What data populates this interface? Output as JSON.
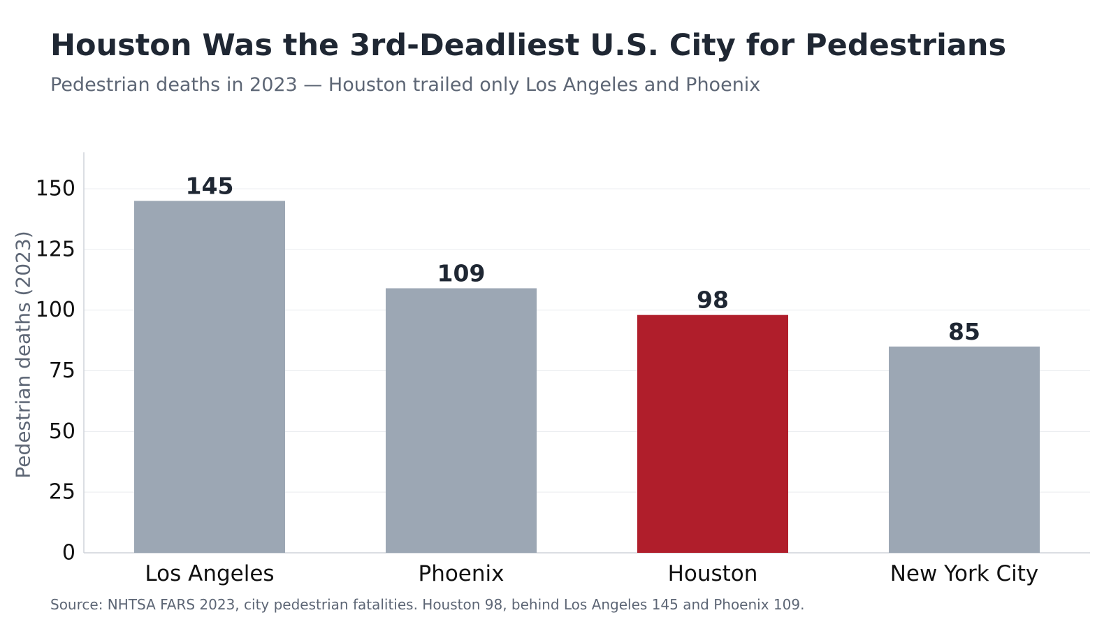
{
  "title": "Houston Was the 3rd-Deadliest U.S. City for Pedestrians",
  "subtitle": "Pedestrian deaths in 2023 — Houston trailed only Los Angeles and Phoenix",
  "source": "Source: NHTSA FARS 2023, city pedestrian fatalities. Houston 98, behind Los Angeles 145 and Phoenix 109.",
  "chart_data": {
    "type": "bar",
    "categories": [
      "Los Angeles",
      "Phoenix",
      "Houston",
      "New York City"
    ],
    "values": [
      145,
      109,
      98,
      85
    ],
    "data_labels": [
      "145",
      "109",
      "98",
      "85"
    ],
    "ylabel": "Pedestrian deaths (2023)",
    "xlabel": "",
    "ylim": [
      0,
      165
    ],
    "yticks": [
      0,
      25,
      50,
      75,
      100,
      125,
      150
    ],
    "ytick_labels": [
      "0",
      "25",
      "50",
      "75",
      "100",
      "125",
      "150"
    ],
    "grid": "horizontal",
    "highlight_category": "Houston",
    "colors": {
      "default_bar": "#9ca7b4",
      "highlight_bar": "#b01e2b",
      "gridline": "#e9ecef",
      "axis": "#cfd4da",
      "data_label": "#1f2733",
      "tick_label": "#111111",
      "axis_label": "#5d6675"
    }
  }
}
